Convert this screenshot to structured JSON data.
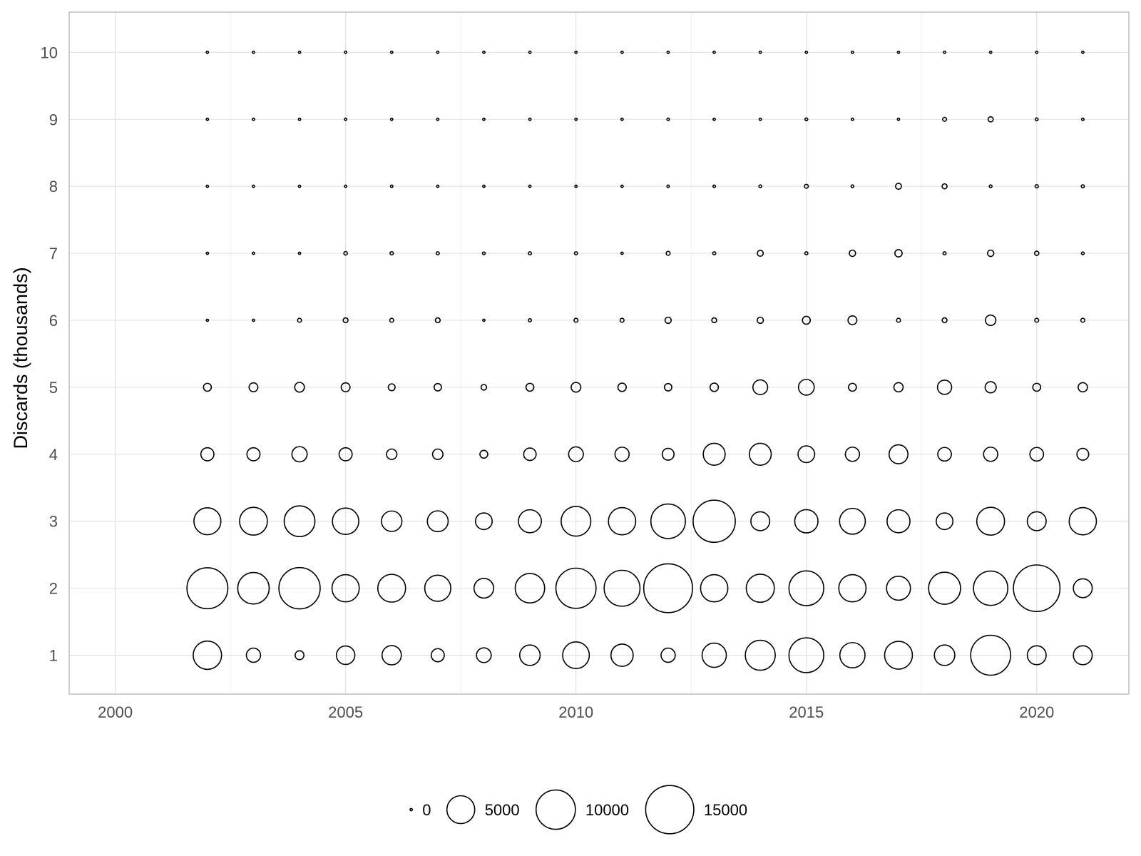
{
  "chart_data": {
    "type": "scatter",
    "title": "",
    "xlabel": "",
    "ylabel": "Discards (thousands)",
    "xlim": [
      1999,
      2022
    ],
    "ylim": [
      0.42,
      10.6
    ],
    "x_ticks": [
      2000,
      2005,
      2010,
      2015,
      2020
    ],
    "y_ticks": [
      1,
      2,
      3,
      4,
      5,
      6,
      7,
      8,
      9,
      10
    ],
    "grid": true,
    "legend": {
      "position": "bottom",
      "size_breaks": [
        0,
        5000,
        10000,
        15000
      ]
    },
    "size_max_value": 18000,
    "years": [
      2002,
      2003,
      2004,
      2005,
      2006,
      2007,
      2008,
      2009,
      2010,
      2011,
      2012,
      2013,
      2014,
      2015,
      2016,
      2017,
      2018,
      2019,
      2020,
      2021
    ],
    "bubbles": [
      {
        "y": 1,
        "sizes": [
          5200,
          1300,
          500,
          2200,
          2400,
          1100,
          1400,
          2700,
          4600,
          3200,
          1300,
          3800,
          5800,
          7800,
          4100,
          5000,
          2700,
          10300,
          2300,
          2300
        ]
      },
      {
        "y": 2,
        "sizes": [
          10800,
          6400,
          11000,
          4800,
          5000,
          4400,
          2500,
          5600,
          10400,
          8300,
          15400,
          4800,
          5100,
          7800,
          4800,
          3700,
          6600,
          7600,
          14000,
          2300
        ]
      },
      {
        "y": 3,
        "sizes": [
          4700,
          5000,
          6100,
          4500,
          2700,
          2800,
          1800,
          3400,
          5700,
          4800,
          7700,
          11500,
          2300,
          3500,
          4300,
          3400,
          1800,
          5000,
          2300,
          4800
        ]
      },
      {
        "y": 4,
        "sizes": [
          1100,
          1100,
          1500,
          1100,
          700,
          700,
          400,
          1000,
          1400,
          1300,
          900,
          3100,
          3100,
          1800,
          1300,
          2300,
          1200,
          1300,
          1200,
          900
        ]
      },
      {
        "y": 5,
        "sizes": [
          400,
          500,
          600,
          500,
          300,
          350,
          200,
          400,
          600,
          450,
          350,
          450,
          1400,
          1600,
          400,
          550,
          1300,
          800,
          400,
          550
        ]
      },
      {
        "y": 6,
        "sizes": [
          20,
          30,
          100,
          150,
          100,
          150,
          30,
          60,
          100,
          100,
          250,
          150,
          250,
          400,
          500,
          100,
          150,
          700,
          100,
          100
        ]
      },
      {
        "y": 7,
        "sizes": [
          20,
          20,
          30,
          80,
          70,
          60,
          50,
          60,
          60,
          30,
          100,
          60,
          230,
          60,
          260,
          340,
          60,
          260,
          120,
          50
        ]
      },
      {
        "y": 8,
        "sizes": [
          20,
          20,
          20,
          20,
          40,
          20,
          20,
          20,
          20,
          20,
          40,
          40,
          50,
          100,
          50,
          230,
          160,
          50,
          70,
          60
        ]
      },
      {
        "y": 9,
        "sizes": [
          20,
          20,
          20,
          20,
          20,
          20,
          20,
          20,
          20,
          20,
          40,
          20,
          30,
          50,
          30,
          20,
          100,
          170,
          50,
          40
        ]
      },
      {
        "y": 10,
        "sizes": [
          20,
          20,
          20,
          20,
          20,
          20,
          20,
          20,
          20,
          20,
          20,
          20,
          20,
          20,
          20,
          20,
          20,
          20,
          20,
          20
        ]
      }
    ]
  }
}
